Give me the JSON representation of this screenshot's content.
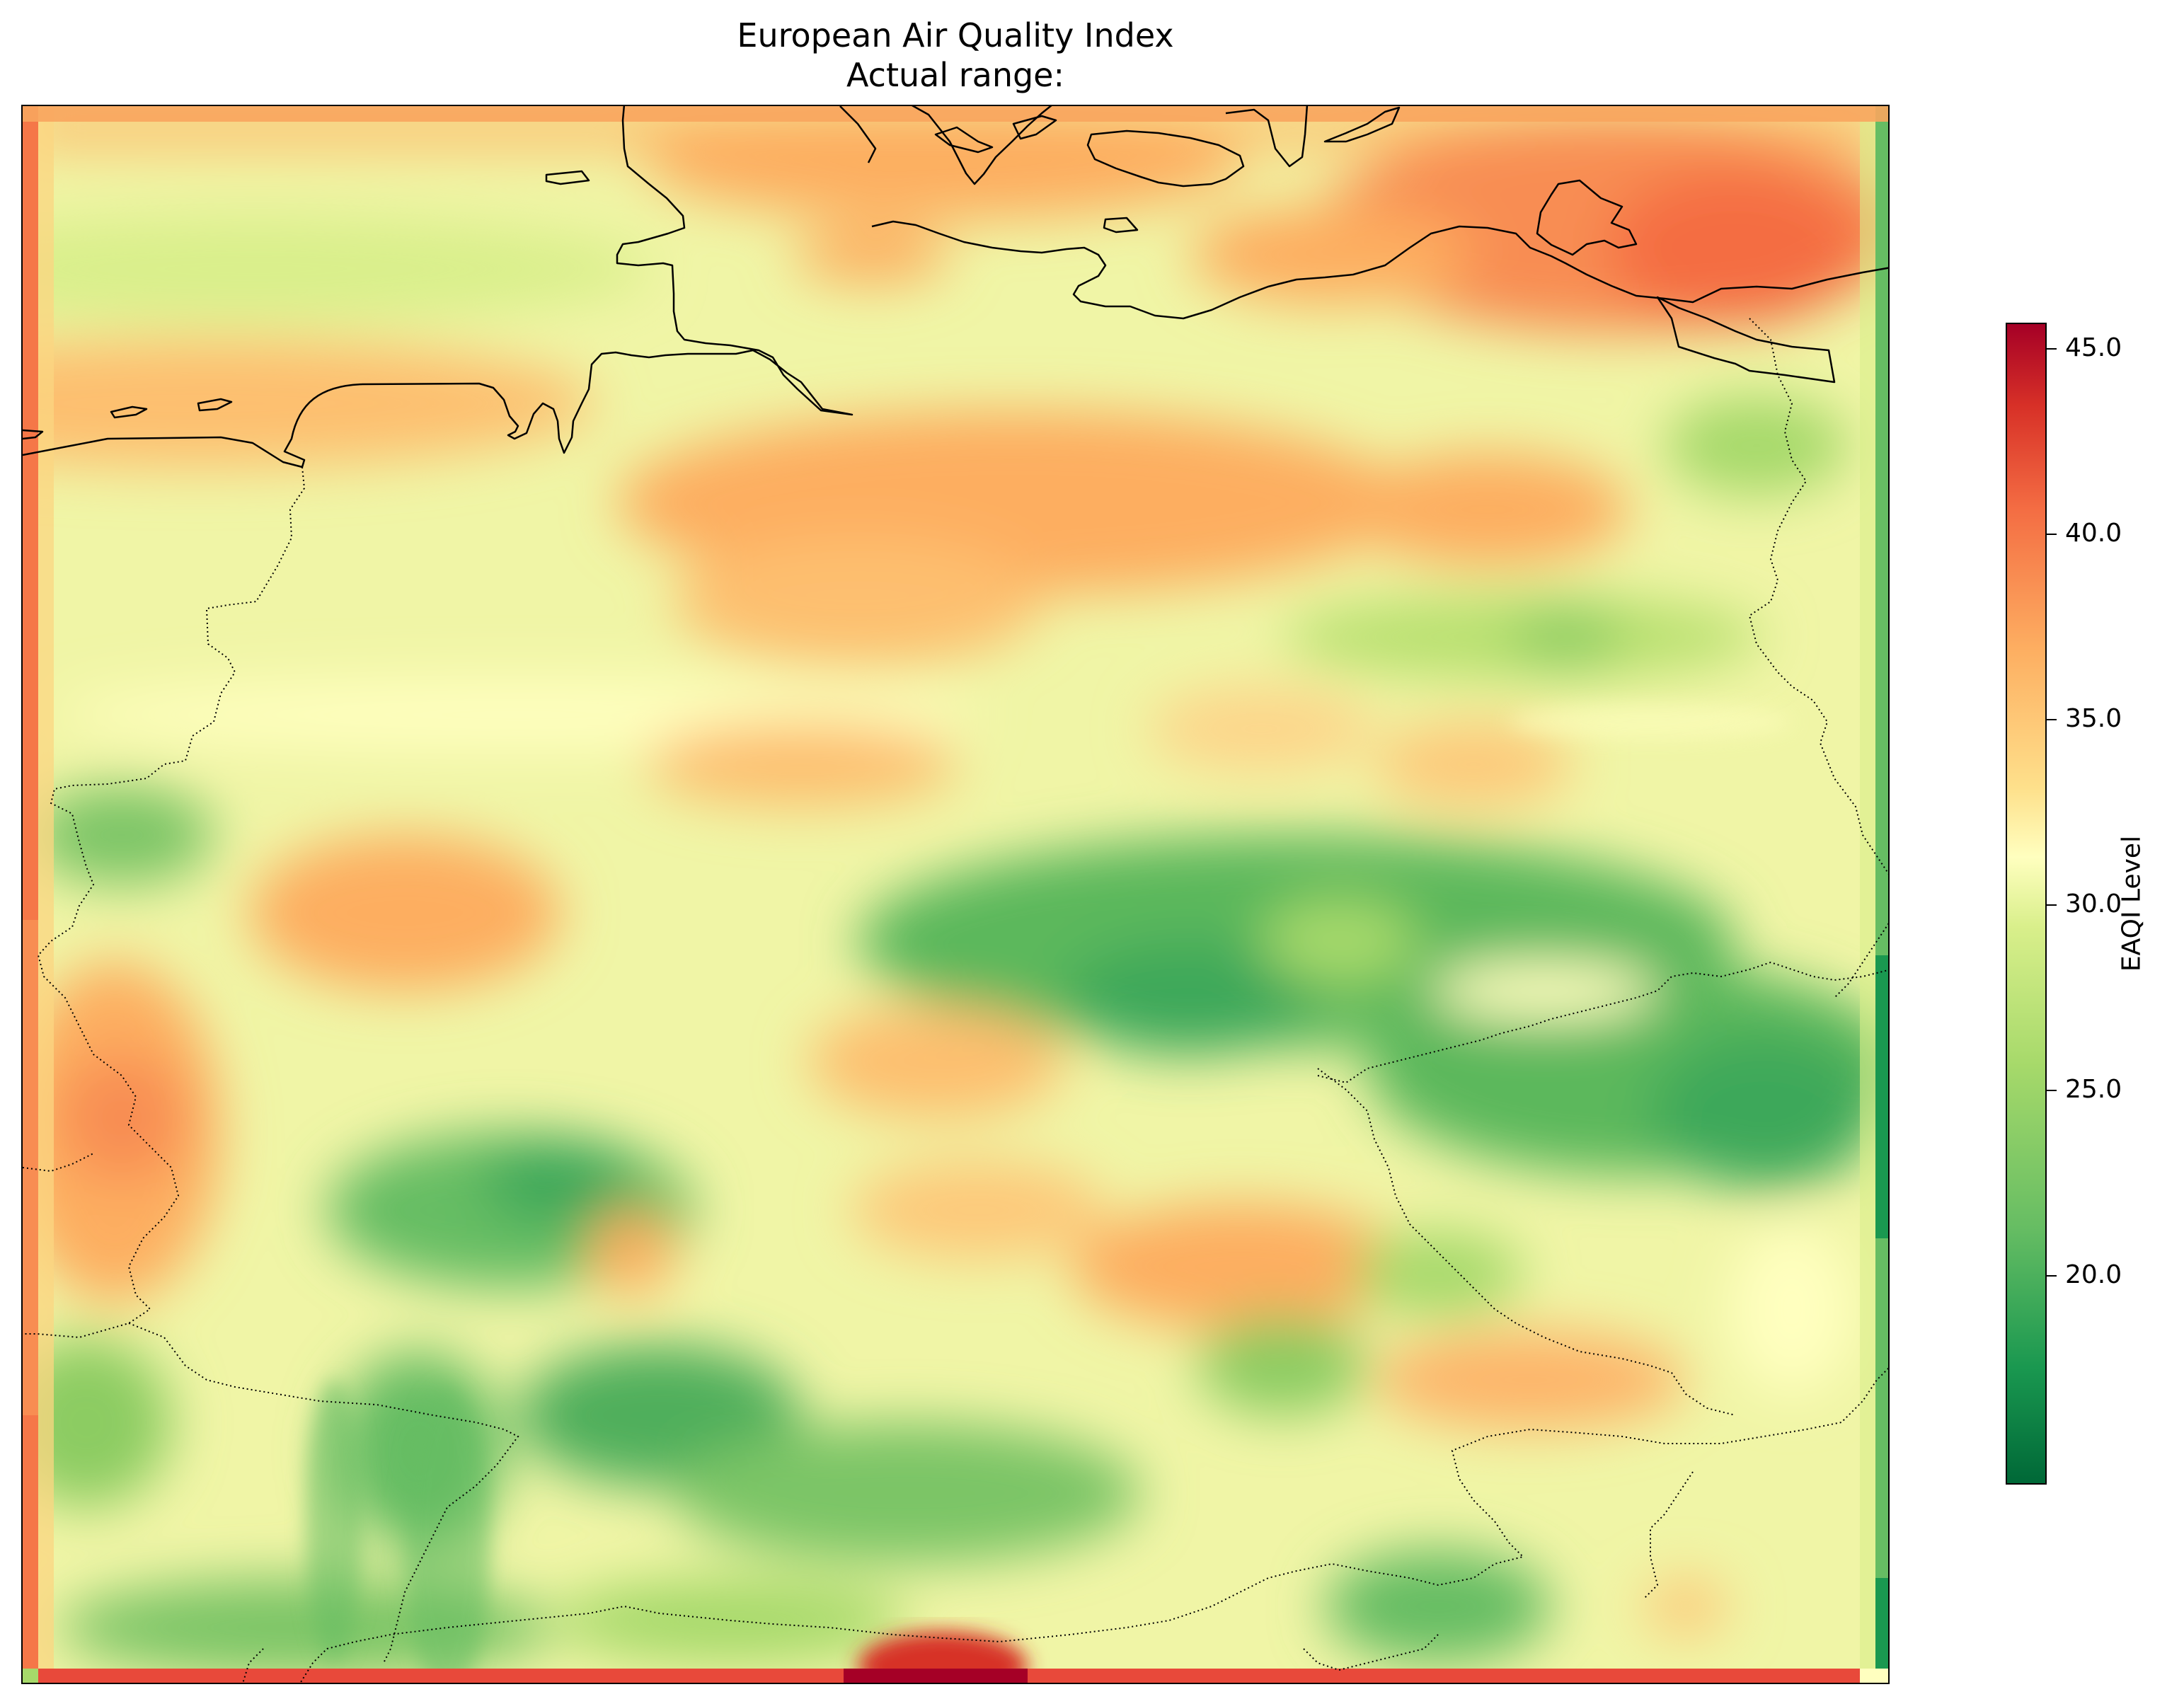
{
  "title": "European Air Quality Index",
  "subtitle": "Actual range:",
  "colorbar": {
    "label": "EAQI Level",
    "range": [
      16.8,
      48.1
    ],
    "ticks": [
      "20.0",
      "25.0",
      "30.0",
      "35.0",
      "40.0",
      "45.0"
    ],
    "colormap": [
      "#006837",
      "#1a9850",
      "#66bd63",
      "#a6d96a",
      "#d9ef8b",
      "#ffffbf",
      "#fee08b",
      "#fdae61",
      "#f46d43",
      "#d73027",
      "#a50026"
    ]
  },
  "map": {
    "colormap": "RdYlGn_r",
    "coastline_color": "#000000",
    "border_style": "dotted"
  }
}
